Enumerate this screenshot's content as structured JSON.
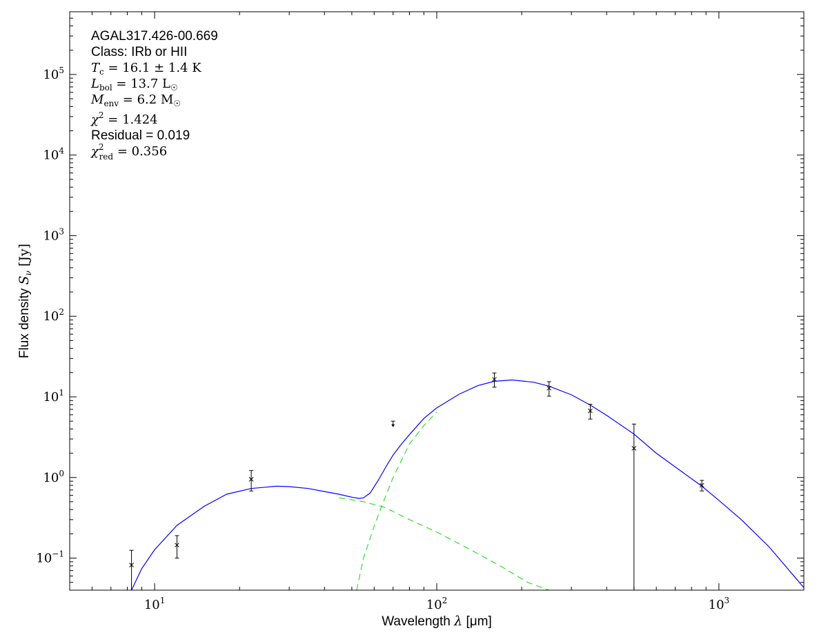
{
  "chart_data": {
    "type": "scatter",
    "xlabel_text": "Wavelength ",
    "xlabel_sym": "λ",
    "xlabel_unit": " [μm]",
    "ylabel_text": "Flux density ",
    "ylabel_sym": "S",
    "ylabel_sub": "ν",
    "ylabel_unit": " [Jy]",
    "x_scale": "log",
    "y_scale": "log",
    "xlim": [
      5,
      2000
    ],
    "ylim": [
      0.04,
      600000
    ],
    "x_ticks": [
      {
        "value": 10,
        "base": "10",
        "exp": "1"
      },
      {
        "value": 100,
        "base": "10",
        "exp": "2"
      },
      {
        "value": 1000,
        "base": "10",
        "exp": "3"
      }
    ],
    "y_ticks": [
      {
        "value": 0.1,
        "base": "10",
        "exp": "−1"
      },
      {
        "value": 1,
        "base": "10",
        "exp": "0"
      },
      {
        "value": 10,
        "base": "10",
        "exp": "1"
      },
      {
        "value": 100,
        "base": "10",
        "exp": "2"
      },
      {
        "value": 1000,
        "base": "10",
        "exp": "3"
      },
      {
        "value": 10000,
        "base": "10",
        "exp": "4"
      },
      {
        "value": 100000,
        "base": "10",
        "exp": "5"
      }
    ],
    "annotations": {
      "source": "AGAL317.426-00.669",
      "class": "Class: IRb or HII",
      "tc": "16.1 ± 1.4 K",
      "lbol": "13.7 L",
      "menv": "6.2 M",
      "chi2": "1.424",
      "residual": "Residual = 0.019",
      "chi2red": "0.356"
    },
    "points": [
      {
        "x": 8.28,
        "y": 0.082,
        "err_low": 0.04,
        "err_high": 0.125
      },
      {
        "x": 12,
        "y": 0.145,
        "err_low": 0.1,
        "err_high": 0.19
      },
      {
        "x": 22,
        "y": 0.95,
        "err_low": 0.68,
        "err_high": 1.22
      },
      {
        "x": 160,
        "y": 16.5,
        "err_low": 13.2,
        "err_high": 19.8
      },
      {
        "x": 250,
        "y": 12.8,
        "err_low": 10.2,
        "err_high": 15.4
      },
      {
        "x": 350,
        "y": 6.7,
        "err_low": 5.3,
        "err_high": 8.1
      },
      {
        "x": 500,
        "y": 2.3,
        "err_low": 0.04,
        "err_high": 4.6
      },
      {
        "x": 870,
        "y": 0.8,
        "err_low": 0.68,
        "err_high": 0.92
      }
    ],
    "upper_limits": [
      {
        "x": 70,
        "y_top": 5.0,
        "y_arrow": 4.3
      }
    ],
    "series": [
      {
        "style": "solid",
        "color": "#0000ff",
        "x": [
          8.28,
          9,
          10,
          12,
          15,
          18,
          22,
          27,
          30,
          35,
          40,
          45,
          50,
          53,
          55,
          58,
          62,
          66,
          70,
          75,
          80,
          90,
          100,
          120,
          140,
          160,
          185,
          220,
          250,
          300,
          350,
          400,
          500,
          600,
          700,
          870,
          1000,
          1200,
          1500,
          2000
        ],
        "y": [
          0.04,
          0.074,
          0.127,
          0.255,
          0.44,
          0.62,
          0.73,
          0.78,
          0.77,
          0.73,
          0.67,
          0.62,
          0.57,
          0.55,
          0.56,
          0.64,
          0.92,
          1.35,
          1.9,
          2.6,
          3.4,
          5.4,
          7.3,
          10.8,
          13.8,
          15.6,
          16.2,
          15.2,
          13.6,
          10.6,
          7.9,
          5.9,
          3.45,
          2.0,
          1.35,
          0.78,
          0.52,
          0.3,
          0.14,
          0.043
        ]
      },
      {
        "style": "dashed",
        "color": "#33dd33",
        "x": [
          45,
          55,
          65,
          80,
          100,
          130,
          170,
          210,
          250
        ],
        "y": [
          0.56,
          0.5,
          0.43,
          0.3,
          0.21,
          0.13,
          0.078,
          0.05,
          0.04
        ]
      },
      {
        "style": "dashed",
        "color": "#33dd33",
        "x": [
          52,
          55,
          60,
          65,
          70,
          80,
          90,
          100
        ],
        "y": [
          0.04,
          0.1,
          0.25,
          0.52,
          1.0,
          2.6,
          4.4,
          6.5
        ]
      }
    ]
  }
}
